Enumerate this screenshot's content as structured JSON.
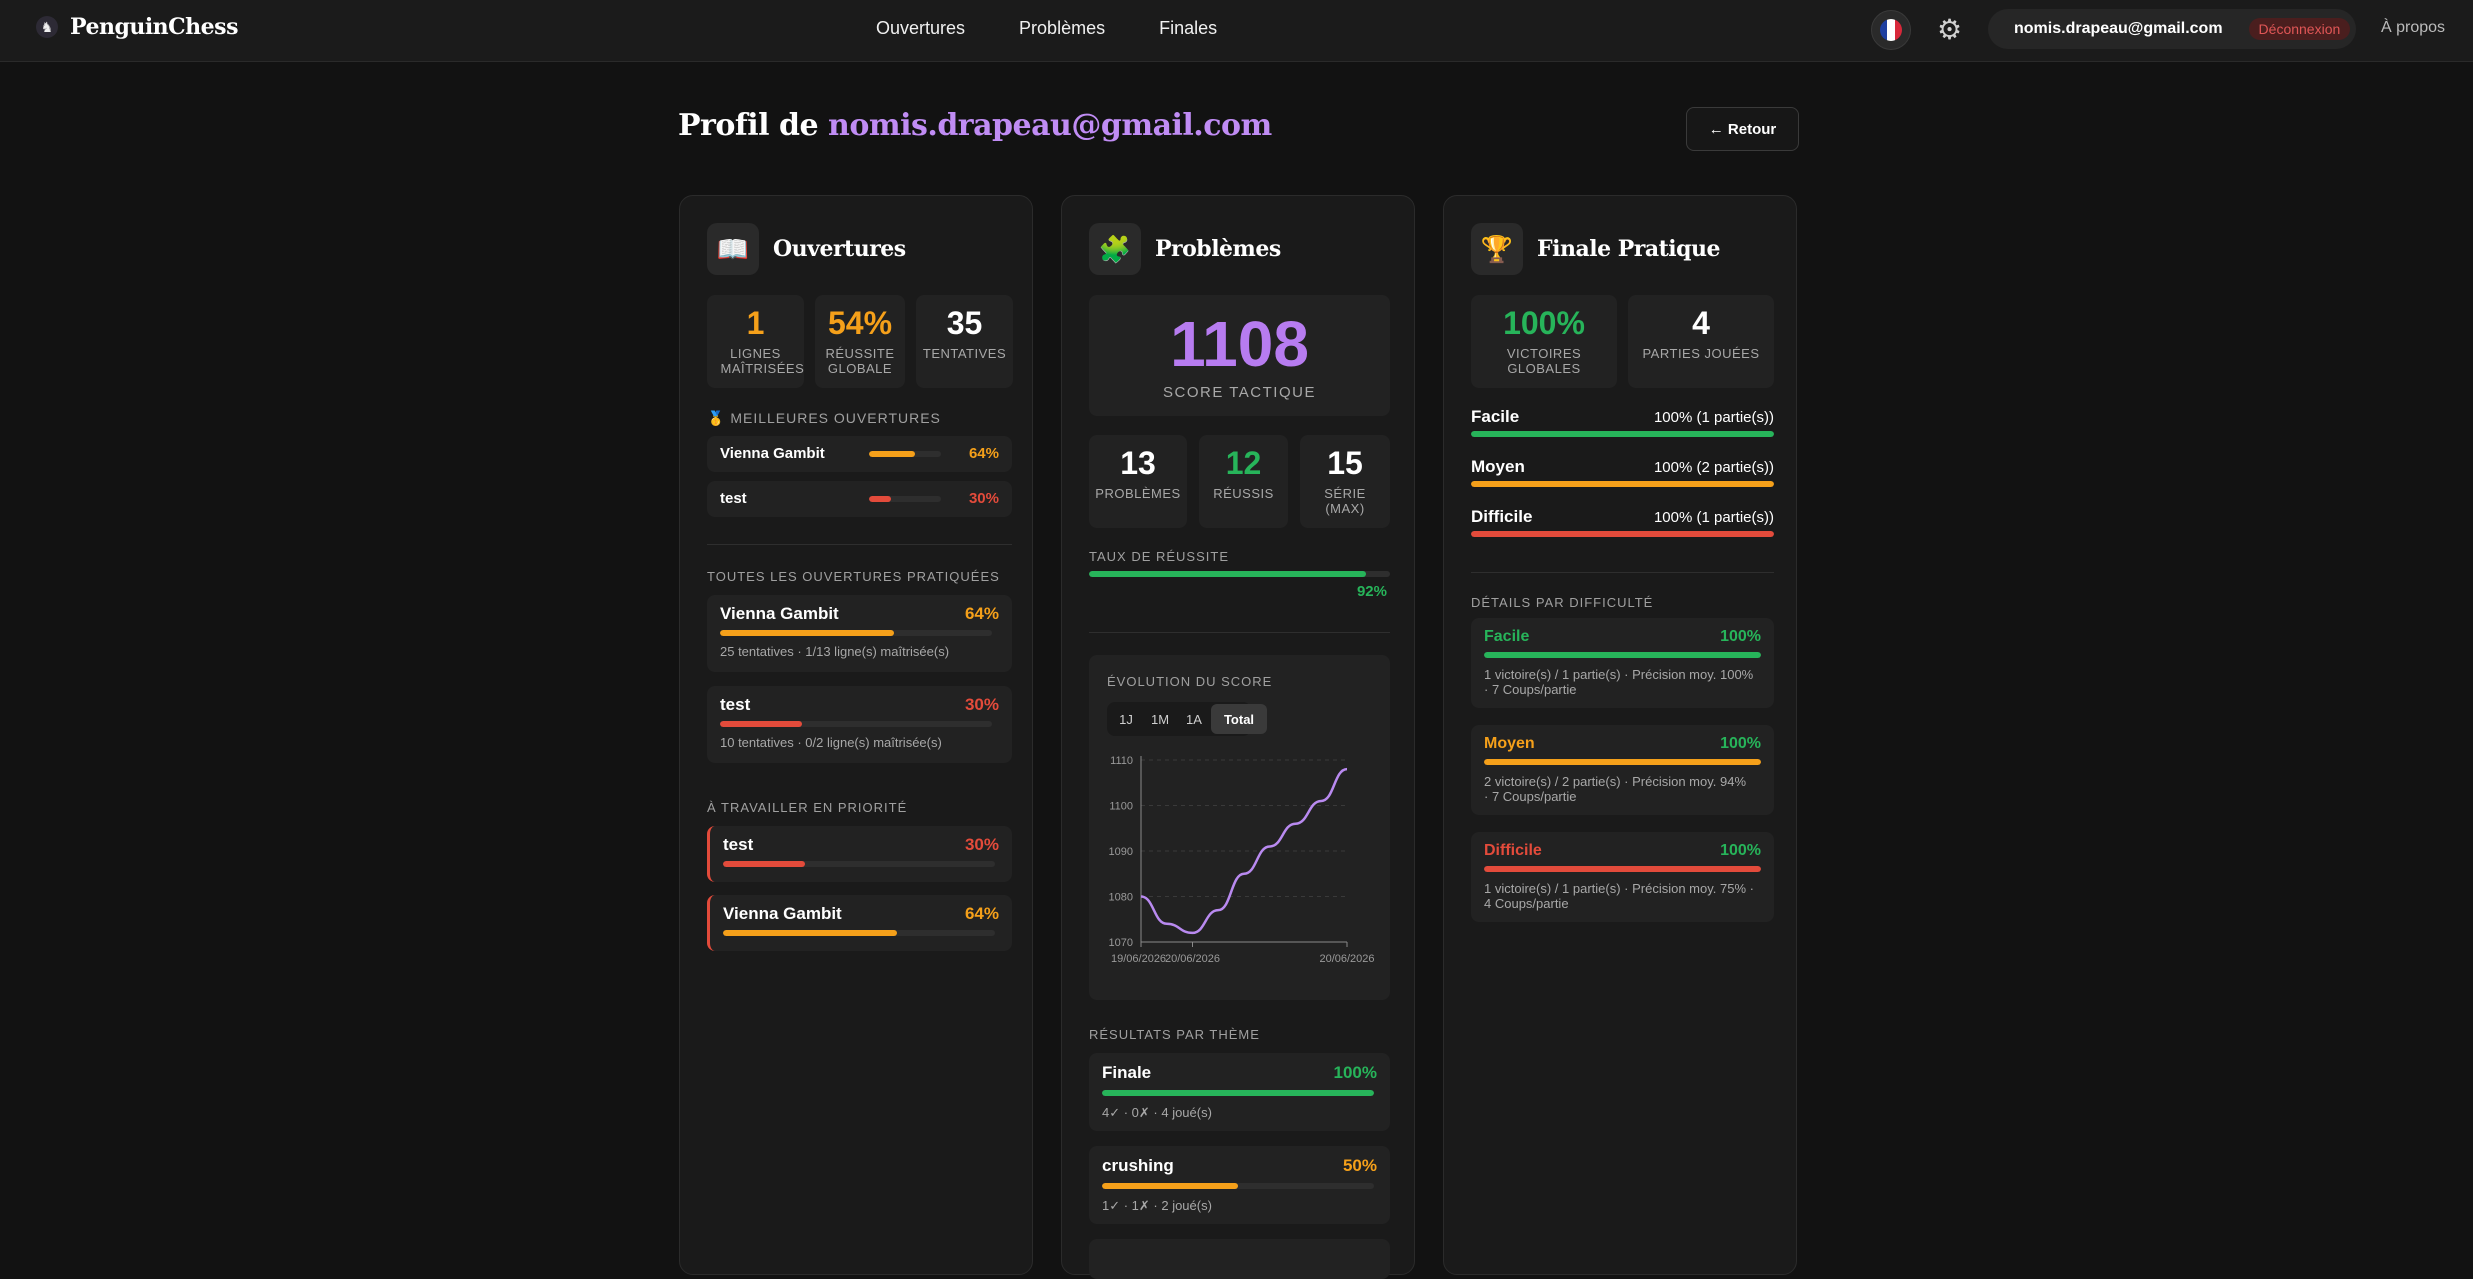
{
  "nav": {
    "brand": "PenguinChess",
    "links": [
      "Ouvertures",
      "Problèmes",
      "Finales"
    ],
    "user_email": "nomis.drapeau@gmail.com",
    "logout": "Déconnexion",
    "about": "À propos"
  },
  "page": {
    "title_prefix": "Profil de ",
    "title_email": "nomis.drapeau@gmail.com",
    "back": "← Retour"
  },
  "openings": {
    "title": "Ouvertures",
    "stats": [
      {
        "value": "1",
        "label": "Lignes maîtrisées"
      },
      {
        "value": "54%",
        "label": "Réussite globale"
      },
      {
        "value": "35",
        "label": "Tentatives"
      }
    ],
    "best_label": "Meilleures ouvertures",
    "best": [
      {
        "name": "Vienna Gambit",
        "pct": "64%",
        "fraction": 0.64
      },
      {
        "name": "test",
        "pct": "30%",
        "fraction": 0.3
      }
    ],
    "all_label": "Toutes les ouvertures pratiquées",
    "all": [
      {
        "name": "Vienna Gambit",
        "pct": "64%",
        "fraction": 0.64,
        "sub": "25 tentatives · 1/13 ligne(s) maîtrisée(s)"
      },
      {
        "name": "test",
        "pct": "30%",
        "fraction": 0.3,
        "sub": "10 tentatives · 0/2 ligne(s) maîtrisée(s)"
      }
    ],
    "priority_label": "À travailler en priorité",
    "priority": [
      {
        "name": "test",
        "pct": "30%",
        "fraction": 0.3
      },
      {
        "name": "Vienna Gambit",
        "pct": "64%",
        "fraction": 0.64
      }
    ]
  },
  "problems": {
    "title": "Problèmes",
    "score": "1108",
    "score_label": "Score tactique",
    "stats": [
      {
        "value": "13",
        "label": "Problèmes"
      },
      {
        "value": "12",
        "label": "Réussis"
      },
      {
        "value": "15",
        "label": "Série (max)"
      }
    ],
    "rate_label": "Taux de réussite",
    "rate_pct": "92%",
    "rate_fraction": 0.92,
    "chart_label": "Évolution du score",
    "tabs": [
      "1J",
      "1M",
      "1A",
      "Total"
    ],
    "active_tab": "Total",
    "themes_label": "Résultats par thème",
    "themes": [
      {
        "name": "Finale",
        "pct": "100%",
        "fraction": 1.0,
        "sub": "4✓ · 0✗ · 4 joué(s)"
      },
      {
        "name": "crushing",
        "pct": "50%",
        "fraction": 0.5,
        "sub": "1✓ · 1✗ · 2 joué(s)"
      }
    ]
  },
  "chart_data": {
    "type": "line",
    "title": "Évolution du score",
    "xlabel": "",
    "ylabel": "",
    "x_tick_labels": [
      "19/06/2026",
      "20/06/2026",
      "20/06/2026"
    ],
    "y_ticks": [
      1070,
      1080,
      1090,
      1100,
      1110
    ],
    "ylim": [
      1070,
      1110
    ],
    "series": [
      {
        "values": [
          1080,
          1074,
          1072,
          1077,
          1085,
          1091,
          1096,
          1101,
          1108
        ]
      }
    ],
    "grid": true,
    "line_color": "#b98af0"
  },
  "endgames": {
    "title": "Finale Pratique",
    "stats": [
      {
        "value": "100%",
        "label": "Victoires globales"
      },
      {
        "value": "4",
        "label": "Parties jouées"
      }
    ],
    "levels": [
      {
        "name": "Facile",
        "value": "100% (1 partie(s))",
        "fraction": 1.0,
        "color": "#27b45a"
      },
      {
        "name": "Moyen",
        "value": "100% (2 partie(s))",
        "fraction": 1.0,
        "color": "#f5a01a"
      },
      {
        "name": "Difficile",
        "value": "100% (1 partie(s))",
        "fraction": 1.0,
        "color": "#e34b3b"
      }
    ],
    "details_label": "Détails par difficulté",
    "details": [
      {
        "name": "Facile",
        "pct": "100%",
        "line1": "1 victoire(s) / 1 partie(s) · Précision moy. 100%",
        "line2": "· 7 Coups/partie"
      },
      {
        "name": "Moyen",
        "pct": "100%",
        "line1": "2 victoire(s) / 2 partie(s) · Précision moy. 94%",
        "line2": "· 7 Coups/partie"
      },
      {
        "name": "Difficile",
        "pct": "100%",
        "line1": "1 victoire(s) / 1 partie(s) · Précision moy. 75% ·",
        "line2": "4 Coups/partie"
      }
    ]
  },
  "colors": {
    "accent": "#b77cf0",
    "orange": "#f5a01a",
    "red": "#e34b3b",
    "green": "#27b45a"
  },
  "icons": {
    "brand": "penguin-icon",
    "openings": "book-icon",
    "problems": "puzzle-icon",
    "endgames": "trophy-icon",
    "settings": "gear-icon",
    "language": "flag-fr-icon"
  }
}
